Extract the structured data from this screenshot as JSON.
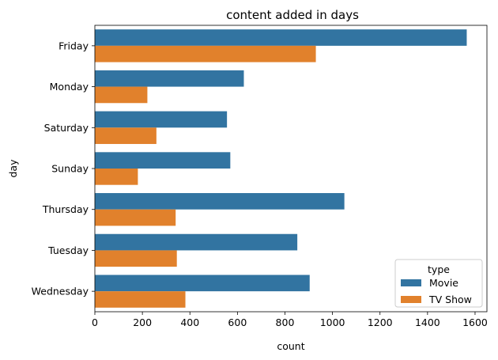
{
  "chart_data": {
    "type": "bar",
    "orientation": "horizontal",
    "title": "content added in days",
    "xlabel": "count",
    "ylabel": "day",
    "categories": [
      "Friday",
      "Monday",
      "Saturday",
      "Sunday",
      "Thursday",
      "Tuesday",
      "Wednesday"
    ],
    "series": [
      {
        "name": "Movie",
        "color": "#3274a1",
        "values": [
          1565,
          627,
          556,
          570,
          1050,
          852,
          904
        ]
      },
      {
        "name": "TV Show",
        "color": "#e1812c",
        "values": [
          930,
          221,
          259,
          181,
          340,
          345,
          381
        ]
      }
    ],
    "xlim": [
      0,
      1650
    ],
    "xticks": [
      0,
      200,
      400,
      600,
      800,
      1000,
      1200,
      1400,
      1600
    ],
    "grid": false,
    "legend": {
      "title": "type",
      "placement": "bottom-right"
    }
  }
}
